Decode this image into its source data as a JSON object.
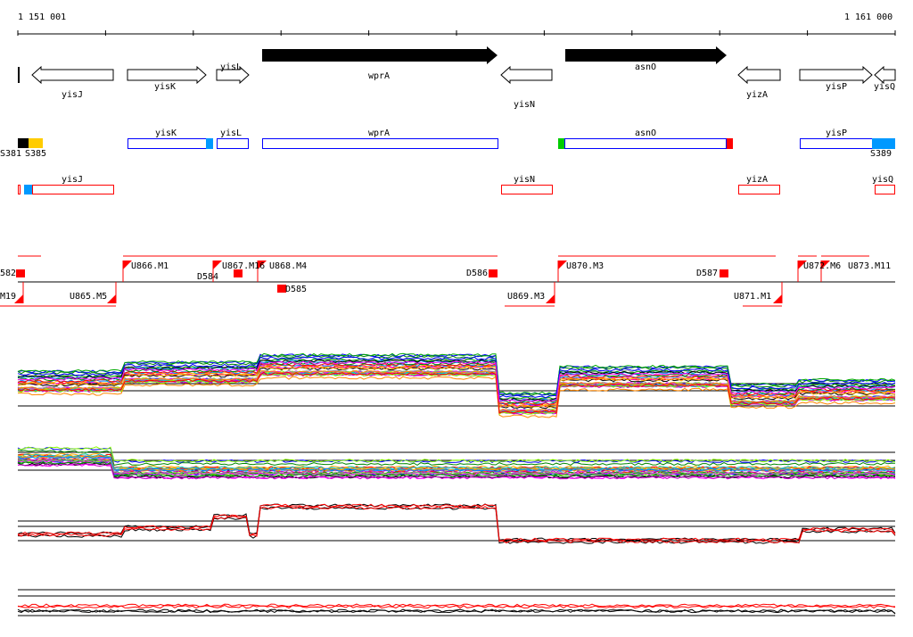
{
  "ruler": {
    "start": "1 151 001",
    "end": "1 161 000"
  },
  "genes": [
    {
      "name": "yisJ",
      "strand": "-"
    },
    {
      "name": "yisK",
      "strand": "+"
    },
    {
      "name": "yisL",
      "strand": "+"
    },
    {
      "name": "wprA",
      "strand": "+"
    },
    {
      "name": "yisN",
      "strand": "-"
    },
    {
      "name": "asnO",
      "strand": "+"
    },
    {
      "name": "yizA",
      "strand": "-"
    },
    {
      "name": "yisP",
      "strand": "+"
    },
    {
      "name": "yisQ",
      "strand": "-"
    }
  ],
  "forward_transcripts": {
    "labels": [
      "S381",
      "S385",
      "yisK",
      "yisL",
      "wprA",
      "asnO",
      "yisP",
      "S389"
    ]
  },
  "reverse_transcripts": {
    "labels": [
      "yisJ",
      "yisN",
      "yizA",
      "yisQ"
    ]
  },
  "upshifts_top": [
    "582",
    "U866.M1",
    "D584",
    "U867.M16",
    "U868.M4",
    "D586",
    "U870.M3",
    "D587",
    "U872.M6",
    "U873.M11"
  ],
  "upshifts_bottom": [
    "M19",
    "U865.M5",
    "D585",
    "U869.M3",
    "U871.M1"
  ],
  "colors": {
    "forward": "#0000ff",
    "reverse": "#ff0000",
    "accent_blue": "#0099ff",
    "accent_yellow": "#ffcc00",
    "green": "#00cc00"
  }
}
